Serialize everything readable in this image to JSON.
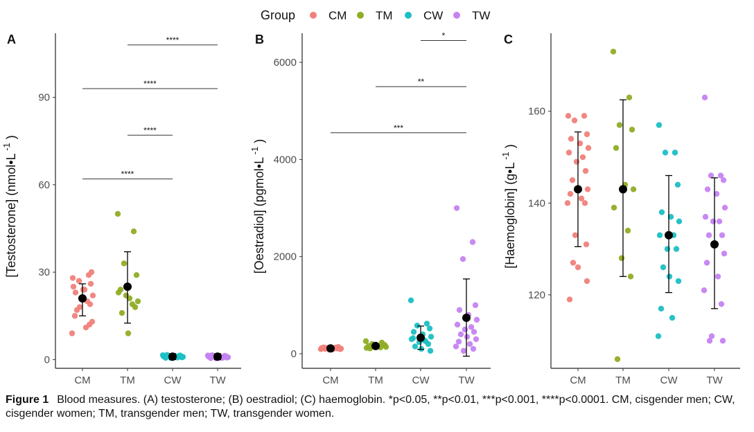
{
  "legend": {
    "title": "Group",
    "items": [
      {
        "label": "CM",
        "color": "#F0817A"
      },
      {
        "label": "TM",
        "color": "#8FAD24"
      },
      {
        "label": "CW",
        "color": "#1BBFC4"
      },
      {
        "label": "TW",
        "color": "#C583F1"
      }
    ]
  },
  "caption": {
    "label": "Figure 1",
    "text": "Blood measures. (A) testosterone; (B) oestradiol; (C) haemoglobin. *p<0.05, **p<0.01, ***p<0.001, ****p<0.0001. CM, cisgender men; CW, cisgender women; TM, transgender men; TW, transgender women."
  },
  "chart_data": [
    {
      "type": "scatter",
      "panel": "A",
      "ylabel": "[Testosterone] (nmol•L",
      "ylabel_sup": "-1",
      "ylabel_close": ")",
      "categories": [
        "CM",
        "TM",
        "CW",
        "TW"
      ],
      "ylim": [
        -3,
        112
      ],
      "yticks": [
        0,
        30,
        60,
        90
      ],
      "points": [
        [
          28,
          29,
          27,
          30,
          23,
          24,
          22,
          25,
          20,
          21,
          19,
          17,
          24,
          13,
          15,
          11,
          9,
          12,
          18,
          26
        ],
        [
          50,
          44,
          33,
          29,
          24,
          21,
          20,
          23,
          19,
          22,
          18,
          16,
          9
        ],
        [
          1.5,
          1.2,
          1.0,
          0.8,
          0.6,
          1.3,
          0.9,
          1.1,
          0.7,
          0.5,
          1.4,
          1.6,
          1.0,
          0.8
        ],
        [
          1.4,
          1.1,
          0.9,
          0.7,
          0.5,
          1.2,
          0.8,
          1.0,
          0.6,
          0.4,
          1.3,
          1.5,
          0.9,
          0.7,
          1.1,
          0.6
        ]
      ],
      "mean": [
        21,
        25,
        1,
        1
      ],
      "err": [
        [
          15,
          26
        ],
        [
          12.5,
          37
        ],
        [
          0,
          2
        ],
        [
          0,
          2
        ]
      ],
      "brackets": [
        {
          "from": "CM",
          "to": "CW",
          "y": 62,
          "label": "****"
        },
        {
          "from": "TM",
          "to": "CW",
          "y": 77,
          "label": "****"
        },
        {
          "from": "CM",
          "to": "TW",
          "y": 93,
          "label": "****"
        },
        {
          "from": "TM",
          "to": "TW",
          "y": 108,
          "label": "****"
        }
      ]
    },
    {
      "type": "scatter",
      "panel": "B",
      "ylabel": "[Oestradiol] (pgmol•L",
      "ylabel_sup": "-1",
      "ylabel_close": ")",
      "categories": [
        "CM",
        "TM",
        "CW",
        "TW"
      ],
      "ylim": [
        -300,
        6600
      ],
      "yticks": [
        0,
        2000,
        4000,
        6000
      ],
      "points": [
        [
          95,
          110,
          120,
          100,
          130,
          90,
          105,
          115,
          125,
          85,
          140,
          100,
          110,
          95,
          120
        ],
        [
          260,
          230,
          200,
          180,
          160,
          150,
          140,
          120,
          130,
          170,
          190,
          110,
          150
        ],
        [
          1100,
          620,
          580,
          520,
          450,
          400,
          350,
          300,
          260,
          240,
          200,
          150,
          100,
          60,
          320,
          280
        ],
        [
          3000,
          2300,
          1950,
          1000,
          900,
          800,
          700,
          600,
          550,
          500,
          450,
          400,
          350,
          300,
          250,
          200,
          150,
          100,
          60
        ]
      ],
      "mean": [
        110,
        160,
        330,
        740
      ],
      "err": [
        [
          90,
          130
        ],
        [
          120,
          200
        ],
        [
          90,
          570
        ],
        [
          -50,
          1540
        ]
      ],
      "brackets": [
        {
          "from": "CM",
          "to": "TW",
          "y": 4550,
          "label": "***"
        },
        {
          "from": "TM",
          "to": "TW",
          "y": 5500,
          "label": "**"
        },
        {
          "from": "CW",
          "to": "TW",
          "y": 6450,
          "label": "*"
        }
      ]
    },
    {
      "type": "scatter",
      "panel": "C",
      "ylabel": "[Haemoglobin] (g•L",
      "ylabel_sup": "-1",
      "ylabel_close": ")",
      "categories": [
        "CM",
        "TM",
        "CW",
        "TW"
      ],
      "ylim": [
        104,
        177
      ],
      "yticks": [
        120,
        140,
        160
      ],
      "points": [
        [
          159,
          159,
          158,
          155,
          154,
          153,
          152,
          151,
          150,
          149,
          147,
          145,
          143,
          143,
          142,
          141,
          140,
          140,
          133,
          131,
          127,
          126,
          123,
          119
        ],
        [
          173,
          163,
          157,
          156,
          152,
          144,
          143,
          139,
          134,
          128,
          124,
          106
        ],
        [
          157,
          151,
          151,
          144,
          138,
          137,
          136,
          133,
          133,
          130,
          130,
          126,
          124,
          123,
          117,
          115,
          111
        ],
        [
          163,
          146,
          146,
          145,
          143,
          142,
          139,
          137,
          136,
          136,
          133,
          133,
          131,
          129,
          127,
          124,
          121,
          118,
          111,
          110,
          110
        ]
      ],
      "mean": [
        143,
        143,
        133,
        131
      ],
      "err": [
        [
          130.5,
          155.5
        ],
        [
          124,
          162.5
        ],
        [
          120.5,
          146
        ],
        [
          117,
          145.5
        ]
      ],
      "brackets": []
    }
  ]
}
